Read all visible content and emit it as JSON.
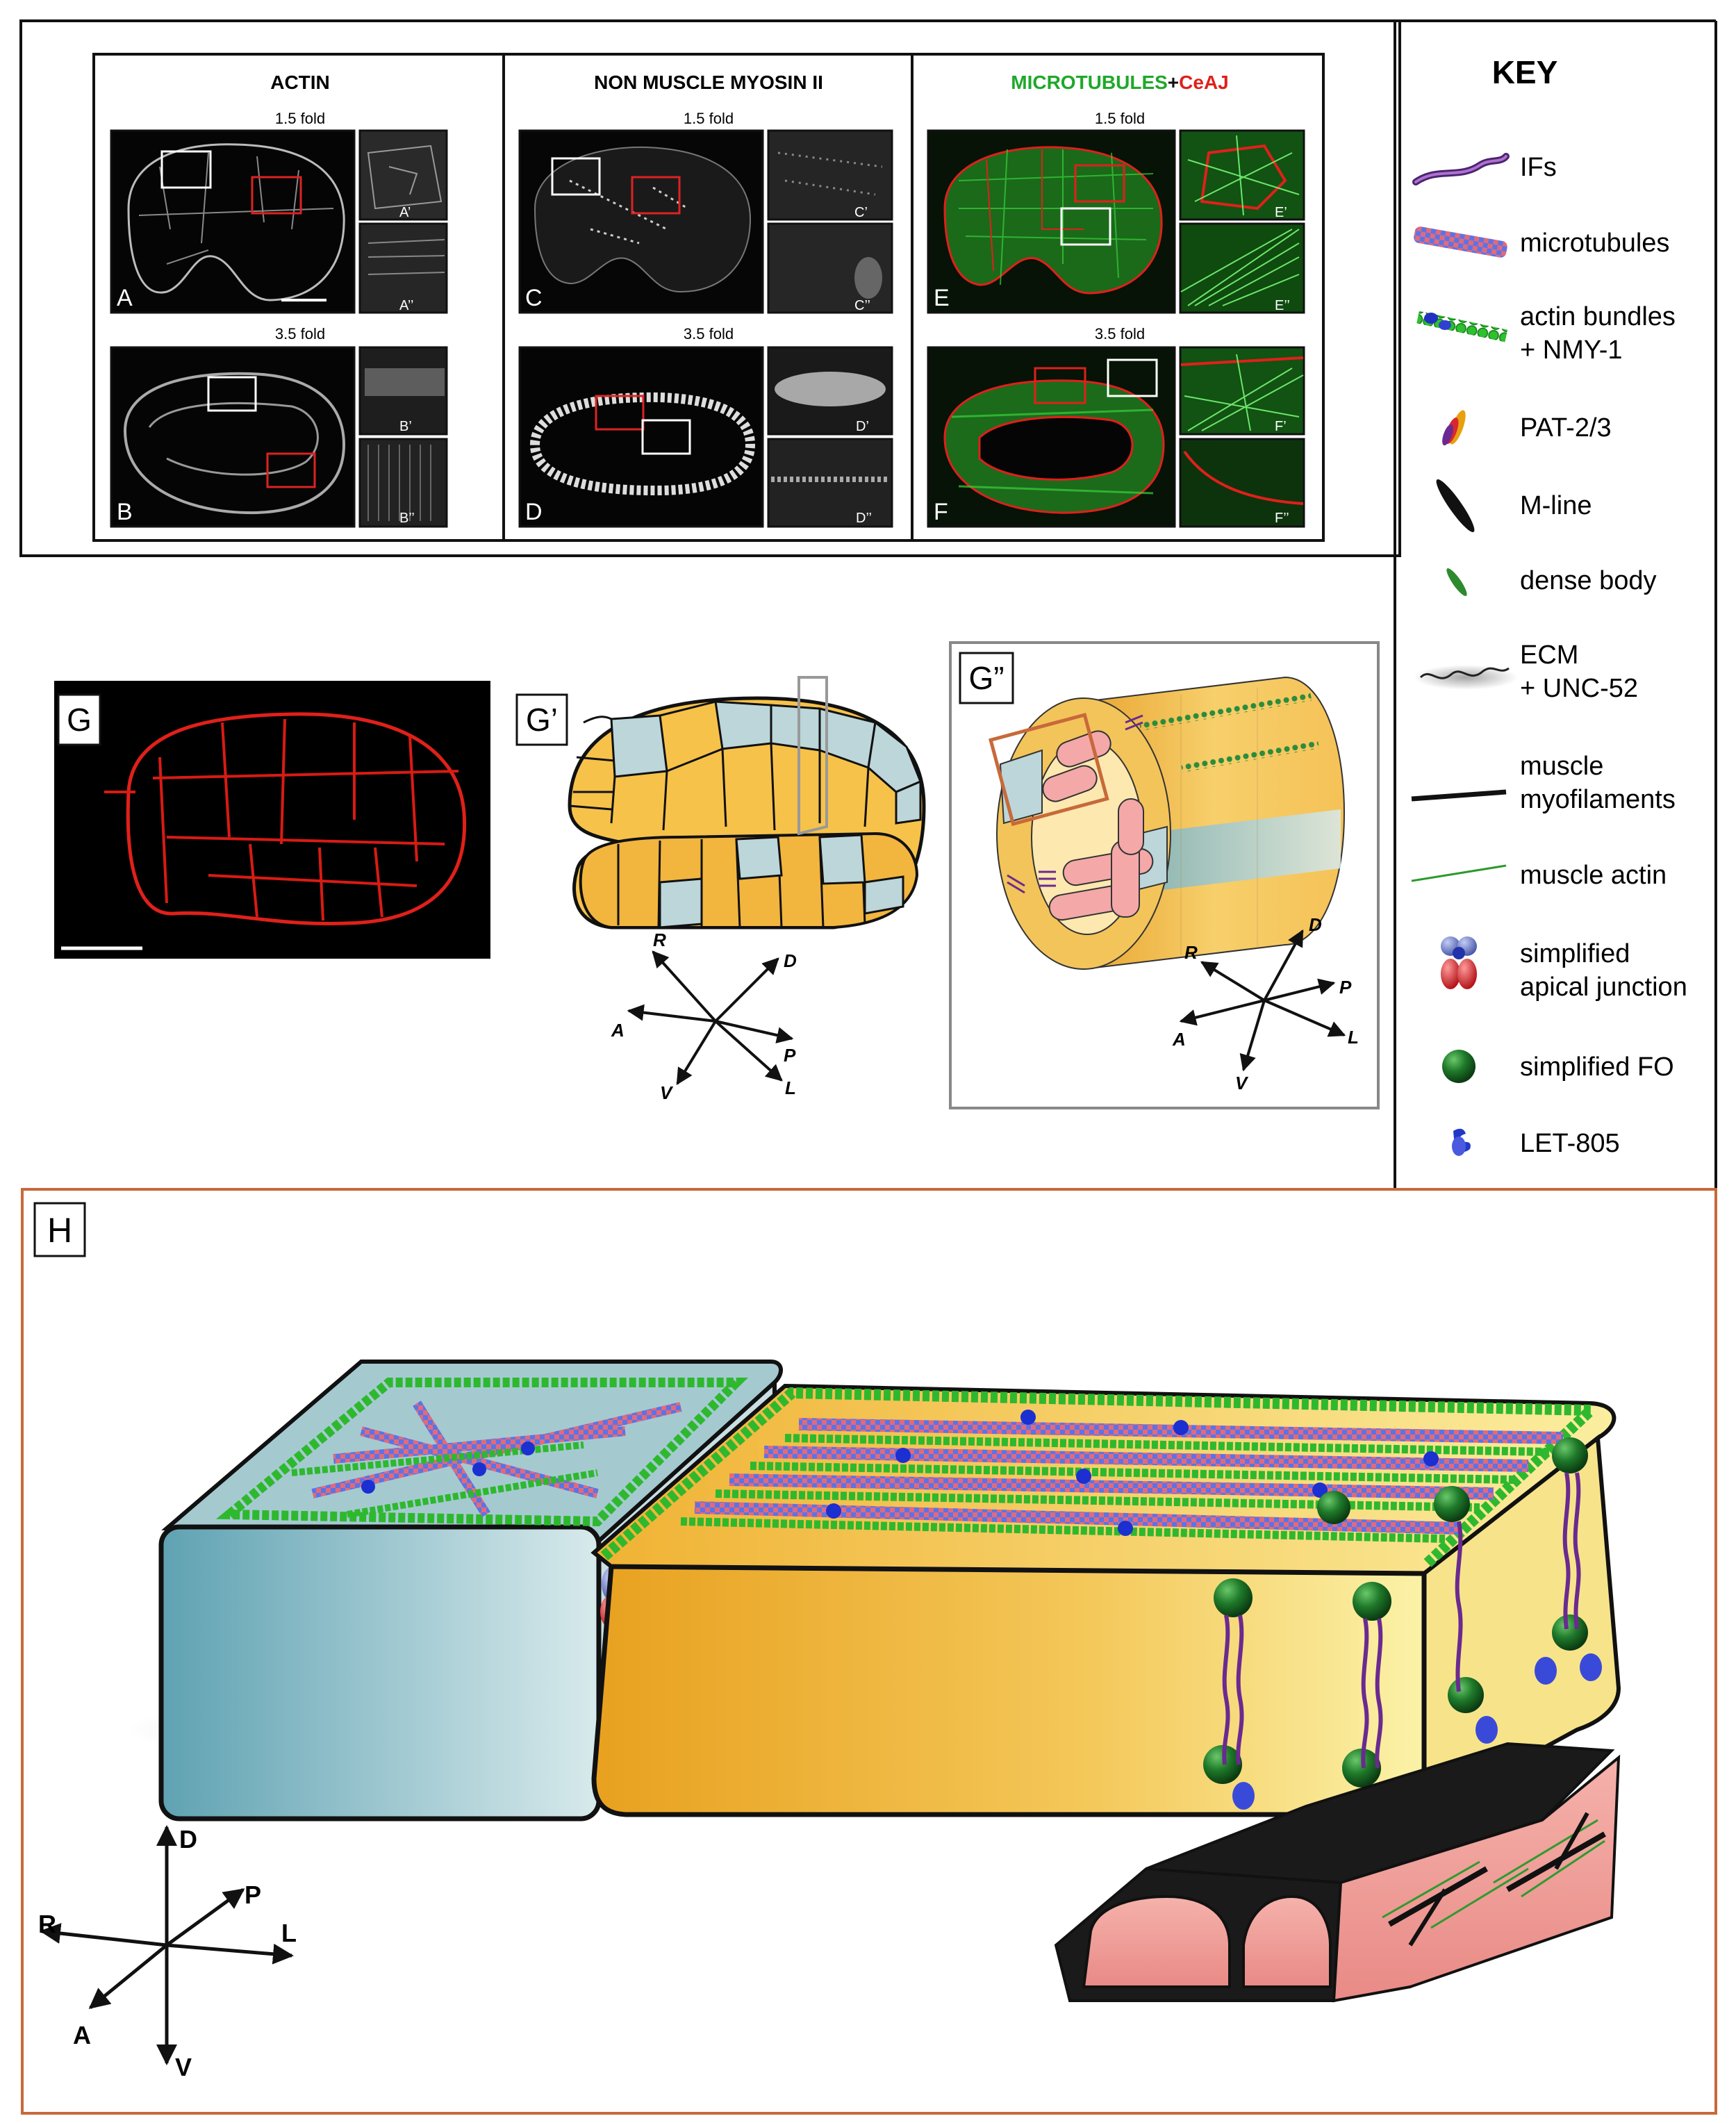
{
  "top_panel": {
    "columns": [
      {
        "title": "ACTIN"
      },
      {
        "title": "NON MUSCLE MYOSIN II"
      },
      {
        "title_green": "MICROTUBULES",
        "title_plus": "+",
        "title_red": "CeAJ"
      }
    ],
    "stage_top": "1.5 fold",
    "stage_bottom": "3.5 fold",
    "labels": {
      "A": "A",
      "A1": "A’",
      "A2": "A’’",
      "B": "B",
      "B1": "B’",
      "B2": "B’’",
      "C": "C",
      "C1": "C’",
      "C2": "C’’",
      "D": "D",
      "D1": "D’",
      "D2": "D’’",
      "E": "E",
      "E1": "E’",
      "E2": "E’’",
      "F": "F",
      "F1": "F’",
      "F2": "F’’"
    }
  },
  "key": {
    "title": "KEY",
    "items": [
      {
        "lines": [
          "IFs"
        ],
        "icon": "intermediate-filament-icon"
      },
      {
        "lines": [
          "microtubules"
        ],
        "icon": "microtubule-icon"
      },
      {
        "lines": [
          "actin bundles",
          "+ NMY-1"
        ],
        "icon": "actin-bundle-icon"
      },
      {
        "lines": [
          "PAT-2/3"
        ],
        "icon": "pat-integrin-icon"
      },
      {
        "lines": [
          "M-line"
        ],
        "icon": "m-line-icon"
      },
      {
        "lines": [
          "dense body"
        ],
        "icon": "dense-body-icon"
      },
      {
        "lines": [
          "ECM",
          "+ UNC-52"
        ],
        "icon": "ecm-icon"
      },
      {
        "lines": [
          "muscle",
          "myofilaments"
        ],
        "icon": "myofilament-icon"
      },
      {
        "lines": [
          "muscle actin"
        ],
        "icon": "muscle-actin-icon"
      },
      {
        "lines": [
          "simplified",
          "apical junction"
        ],
        "icon": "apical-junction-icon"
      },
      {
        "lines": [
          "simplified FO"
        ],
        "icon": "fibrous-organelle-icon"
      },
      {
        "lines": [
          "LET-805"
        ],
        "icon": "let805-icon"
      }
    ]
  },
  "panels": {
    "G": "G",
    "G1": "G’",
    "G2": "G”",
    "H": "H"
  },
  "axes": {
    "R": "R",
    "D": "D",
    "A": "A",
    "P": "P",
    "V": "V",
    "L": "L"
  },
  "colors": {
    "actin_green": "#2db52d",
    "microtubule_blue": "#5a6fe0",
    "microtubule_red": "#e05a6f",
    "hyp_yellow": "#f2b938",
    "hyp_grey_blue": "#bcd6da",
    "muscle_pink": "#f2a1a1",
    "junction_red": "#d92f2f",
    "cell_outline_red": "#e0201a",
    "frame_orange": "#c8693a"
  }
}
